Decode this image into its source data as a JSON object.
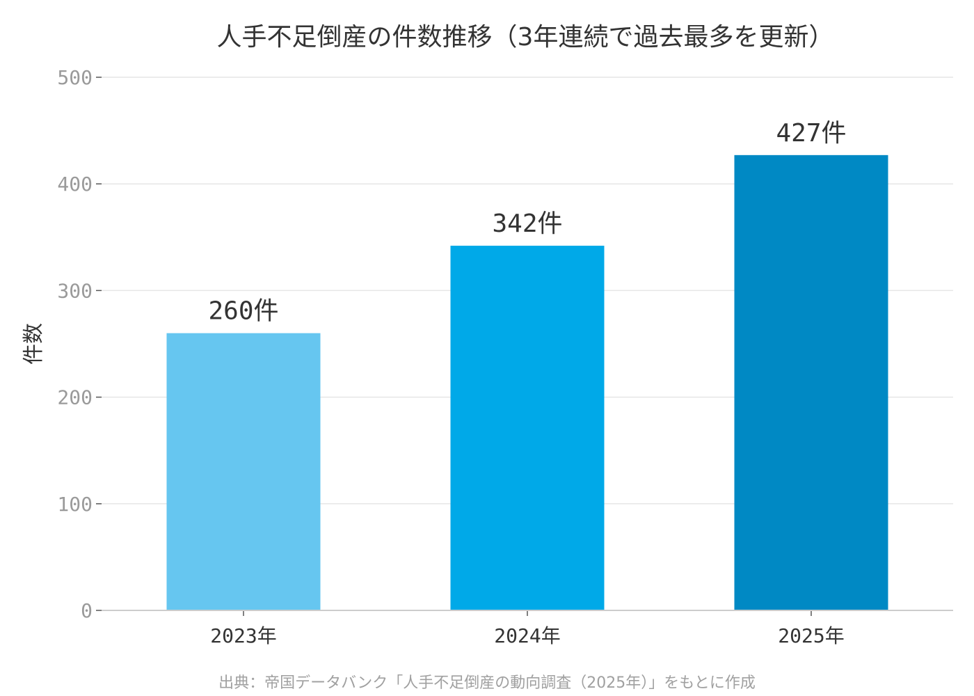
{
  "chart_data": {
    "type": "bar",
    "title": "人手不足倒産の件数推移（3年連続で過去最多を更新）",
    "xlabel": "",
    "ylabel": "件数",
    "categories": [
      "2023年",
      "2024年",
      "2025年"
    ],
    "values": [
      260,
      342,
      427
    ],
    "data_labels": [
      "260件",
      "342件",
      "427件"
    ],
    "bar_colors": [
      "#66c6f0",
      "#00a9e8",
      "#0089c4"
    ],
    "ylim": [
      0,
      500
    ],
    "yticks": [
      "0",
      "100",
      "200",
      "300",
      "400",
      "500"
    ],
    "grid": true,
    "legend": "none",
    "source": "出典：帝国データバンク「人手不足倒産の動向調査（2025年）」をもとに作成"
  }
}
